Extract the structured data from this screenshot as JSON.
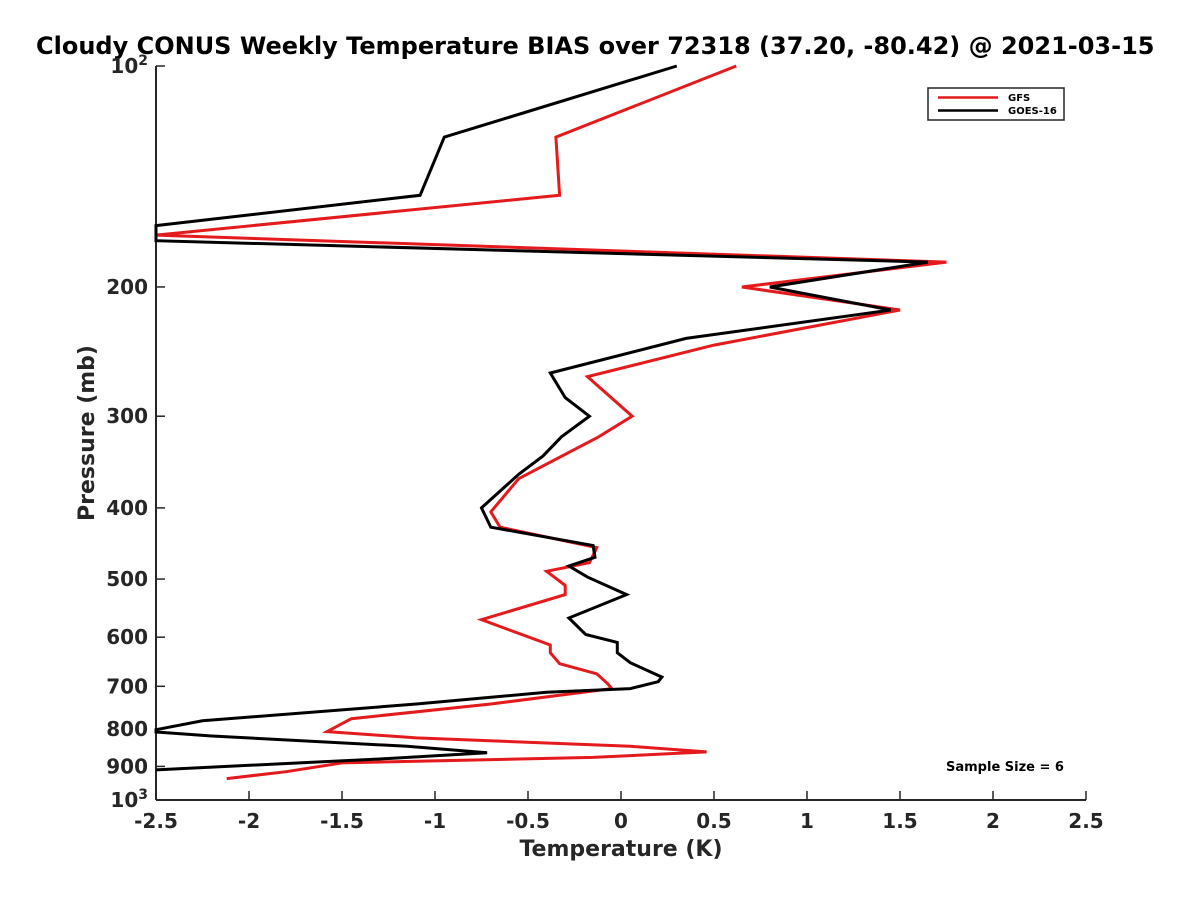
{
  "chart_data": {
    "type": "line",
    "title": "Cloudy CONUS Weekly Temperature BIAS over 72318 (37.20, -80.42) @ 2021-03-15",
    "xlabel": "Temperature (K)",
    "ylabel": "Pressure (mb)",
    "xlim": [
      -2.5,
      2.5
    ],
    "ylim": [
      100,
      1000
    ],
    "yscale": "log",
    "yreversed": true,
    "grid": false,
    "legend_placement": "top-right",
    "x_ticks": [
      -2.5,
      -2,
      -1.5,
      -1,
      -0.5,
      0,
      0.5,
      1,
      1.5,
      2,
      2.5
    ],
    "x_tick_labels": [
      "-2.5",
      "-2",
      "-1.5",
      "-1",
      "-0.5",
      "0",
      "0.5",
      "1",
      "1.5",
      "2",
      "2.5"
    ],
    "y_ticks": [
      100,
      200,
      300,
      400,
      500,
      600,
      700,
      800,
      900,
      1000
    ],
    "y_tick_labels": [
      {
        "base": "10",
        "exp": "2"
      },
      {
        "base": "200",
        "exp": ""
      },
      {
        "base": "300",
        "exp": ""
      },
      {
        "base": "400",
        "exp": ""
      },
      {
        "base": "500",
        "exp": ""
      },
      {
        "base": "600",
        "exp": ""
      },
      {
        "base": "700",
        "exp": ""
      },
      {
        "base": "800",
        "exp": ""
      },
      {
        "base": "900",
        "exp": ""
      },
      {
        "base": "10",
        "exp": "3"
      }
    ],
    "series": [
      {
        "name": "GFS",
        "color": "#e41a1c",
        "points": [
          [
            0.62,
            100
          ],
          [
            -0.35,
            125
          ],
          [
            -0.33,
            150
          ],
          [
            -2.5,
            170
          ],
          [
            1.75,
            185
          ],
          [
            0.65,
            200
          ],
          [
            1.5,
            215
          ],
          [
            0.5,
            240
          ],
          [
            -0.18,
            265
          ],
          [
            0.06,
            300
          ],
          [
            -0.12,
            320
          ],
          [
            -0.55,
            365
          ],
          [
            -0.7,
            405
          ],
          [
            -0.65,
            425
          ],
          [
            -0.13,
            453
          ],
          [
            -0.17,
            475
          ],
          [
            -0.4,
            488
          ],
          [
            -0.3,
            510
          ],
          [
            -0.3,
            525
          ],
          [
            -0.75,
            568
          ],
          [
            -0.38,
            615
          ],
          [
            -0.38,
            630
          ],
          [
            -0.33,
            652
          ],
          [
            -0.13,
            673
          ],
          [
            -0.07,
            695
          ],
          [
            -0.05,
            705
          ],
          [
            -0.7,
            740
          ],
          [
            -1.45,
            775
          ],
          [
            -1.58,
            807
          ],
          [
            -1.1,
            823
          ],
          [
            0.05,
            845
          ],
          [
            0.46,
            860
          ],
          [
            -0.15,
            875
          ],
          [
            -1.5,
            890
          ],
          [
            -1.8,
            915
          ],
          [
            -2.12,
            935
          ]
        ]
      },
      {
        "name": "GOES-16",
        "color": "#000000",
        "points": [
          [
            0.3,
            100
          ],
          [
            -0.95,
            125
          ],
          [
            -1.08,
            150
          ],
          [
            -2.5,
            165
          ],
          [
            -2.5,
            173
          ],
          [
            1.65,
            185
          ],
          [
            0.8,
            200
          ],
          [
            1.45,
            215
          ],
          [
            0.35,
            235
          ],
          [
            -0.38,
            262
          ],
          [
            -0.3,
            283
          ],
          [
            -0.17,
            300
          ],
          [
            -0.32,
            320
          ],
          [
            -0.42,
            340
          ],
          [
            -0.55,
            360
          ],
          [
            -0.75,
            400
          ],
          [
            -0.7,
            425
          ],
          [
            -0.15,
            450
          ],
          [
            -0.14,
            467
          ],
          [
            -0.28,
            480
          ],
          [
            -0.18,
            497
          ],
          [
            0.03,
            525
          ],
          [
            -0.28,
            565
          ],
          [
            -0.19,
            595
          ],
          [
            -0.02,
            610
          ],
          [
            -0.02,
            630
          ],
          [
            0.05,
            650
          ],
          [
            0.22,
            680
          ],
          [
            0.2,
            690
          ],
          [
            0.05,
            705
          ],
          [
            -0.4,
            713
          ],
          [
            -1.1,
            740
          ],
          [
            -2.25,
            780
          ],
          [
            -2.5,
            802
          ],
          [
            -2.5,
            808
          ],
          [
            -2.2,
            818
          ],
          [
            -1.15,
            845
          ],
          [
            -0.72,
            862
          ],
          [
            -1.25,
            878
          ],
          [
            -2.5,
            910
          ]
        ]
      }
    ],
    "legend": {
      "entries": [
        {
          "label": "GFS",
          "color": "#e41a1c"
        },
        {
          "label": "GOES-16",
          "color": "#000000"
        }
      ]
    },
    "annotation": "Sample Size = 6"
  }
}
